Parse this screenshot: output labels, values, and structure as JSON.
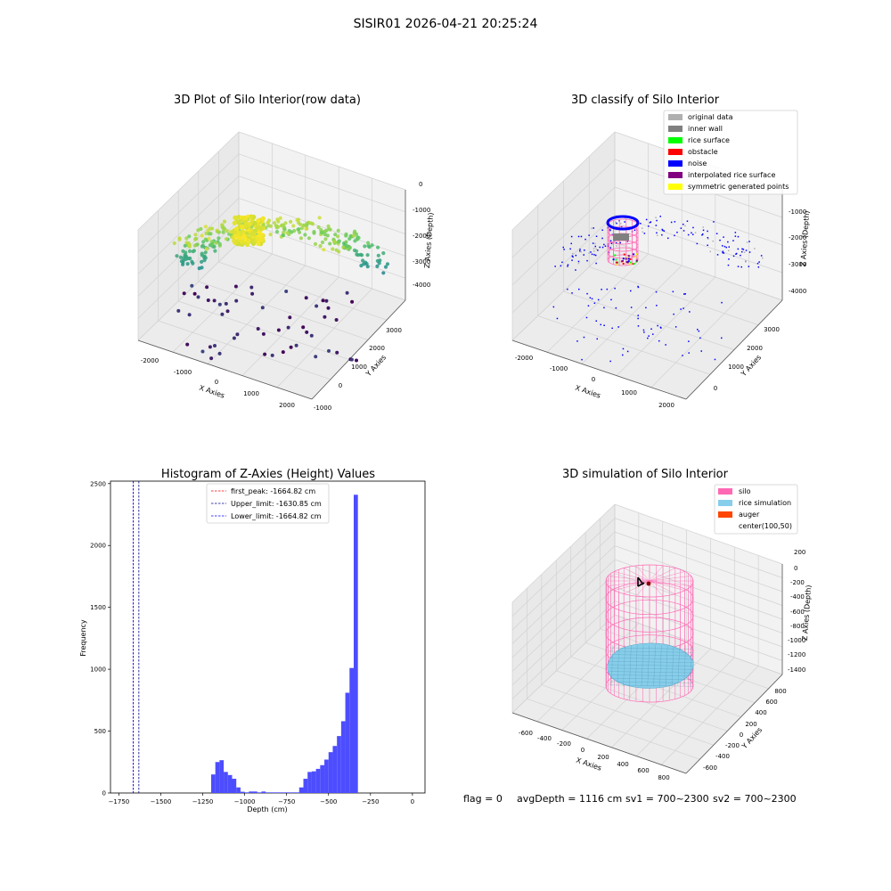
{
  "suptitle": "SISIR01 2026-04-21 20:25:24",
  "panels": {
    "raw": {
      "title": "3D Plot of Silo Interior(row data)",
      "xlabel": "X Axies",
      "ylabel": "Y Axies",
      "zlabel": "Z Axies (Depth)",
      "xticks": [
        "-2000",
        "-1000",
        "0",
        "1000",
        "2000"
      ],
      "yticks": [
        "-1000",
        "0",
        "1000",
        "2000",
        "3000"
      ],
      "zticks": [
        "0",
        "-1000",
        "-2000",
        "-3000",
        "-4000"
      ]
    },
    "classify": {
      "title": "3D classify of Silo Interior",
      "xlabel": "X Axies",
      "ylabel": "Y Axies",
      "zlabel": "Z Axies (Depth)",
      "xticks": [
        "-2000",
        "-1000",
        "0",
        "1000",
        "2000"
      ],
      "yticks": [
        "0",
        "1000",
        "2000",
        "3000"
      ],
      "zticks": [
        "-1000",
        "-2000",
        "-3000",
        "-4000"
      ],
      "legend": [
        {
          "label": "original data",
          "color": "#b0b0b0"
        },
        {
          "label": "inner wall",
          "color": "#808080"
        },
        {
          "label": "rice surface",
          "color": "#00ff00"
        },
        {
          "label": "obstacle",
          "color": "#ff0000"
        },
        {
          "label": "noise",
          "color": "#0000ff"
        },
        {
          "label": "interpolated rice surface",
          "color": "#800080"
        },
        {
          "label": "symmetric generated points",
          "color": "#ffff00"
        }
      ]
    },
    "simulation": {
      "title": "3D simulation of Silo Interior",
      "xlabel": "X Axies",
      "ylabel": "Y Axies",
      "zlabel": "Z Axies (Depth)",
      "xticks": [
        "-600",
        "-400",
        "-200",
        "0",
        "200",
        "400",
        "600",
        "800"
      ],
      "yticks": [
        "-600",
        "-400",
        "-200",
        "0",
        "200",
        "400",
        "600",
        "800"
      ],
      "zticks": [
        "200",
        "0",
        "-200",
        "-400",
        "-600",
        "-800",
        "-1000",
        "-1200",
        "-1400"
      ],
      "legend": [
        {
          "label": "silo",
          "color": "#ff69b4"
        },
        {
          "label": "rice simulation",
          "color": "#87ceeb"
        },
        {
          "label": "auger",
          "color": "#ff4500"
        },
        {
          "label": "center(100,50)",
          "color": "#ffffff"
        }
      ]
    }
  },
  "status": {
    "flag": "flag = 0",
    "avg": "avgDepth = 1116 cm",
    "sv1": "sv1 = 700~2300",
    "sv2": "sv2 = 700~2300"
  },
  "chart_data": [
    {
      "type": "bar",
      "title": "Histogram of Z-Axies (Height) Values",
      "xlabel": "Depth (cm)",
      "ylabel": "Frequency",
      "xlim": [
        -1800,
        75
      ],
      "ylim": [
        0,
        2520
      ],
      "xticks": [
        -1750,
        -1500,
        -1250,
        -1000,
        -750,
        -500,
        -250,
        0
      ],
      "yticks": [
        0,
        500,
        1000,
        1500,
        2000,
        2500
      ],
      "bar_color": "#4d4dff",
      "bins": {
        "start": -1200,
        "width": 25,
        "values": [
          150,
          250,
          265,
          170,
          145,
          115,
          45,
          10,
          5,
          12,
          12,
          5,
          12,
          5,
          5,
          5,
          5,
          5,
          5,
          5,
          5,
          45,
          115,
          170,
          175,
          195,
          225,
          270,
          330,
          380,
          460,
          580,
          810,
          1010,
          2410
        ]
      },
      "lines": [
        {
          "label": "first_peak: -1664.82 cm",
          "x": -1664.82,
          "color": "#ff0000"
        },
        {
          "label": "Upper_limit: -1630.85 cm",
          "x": -1630.85,
          "color": "#00008b"
        },
        {
          "label": "Lower_limit: -1664.82 cm",
          "x": -1664.82,
          "color": "#0000ff"
        }
      ]
    }
  ]
}
